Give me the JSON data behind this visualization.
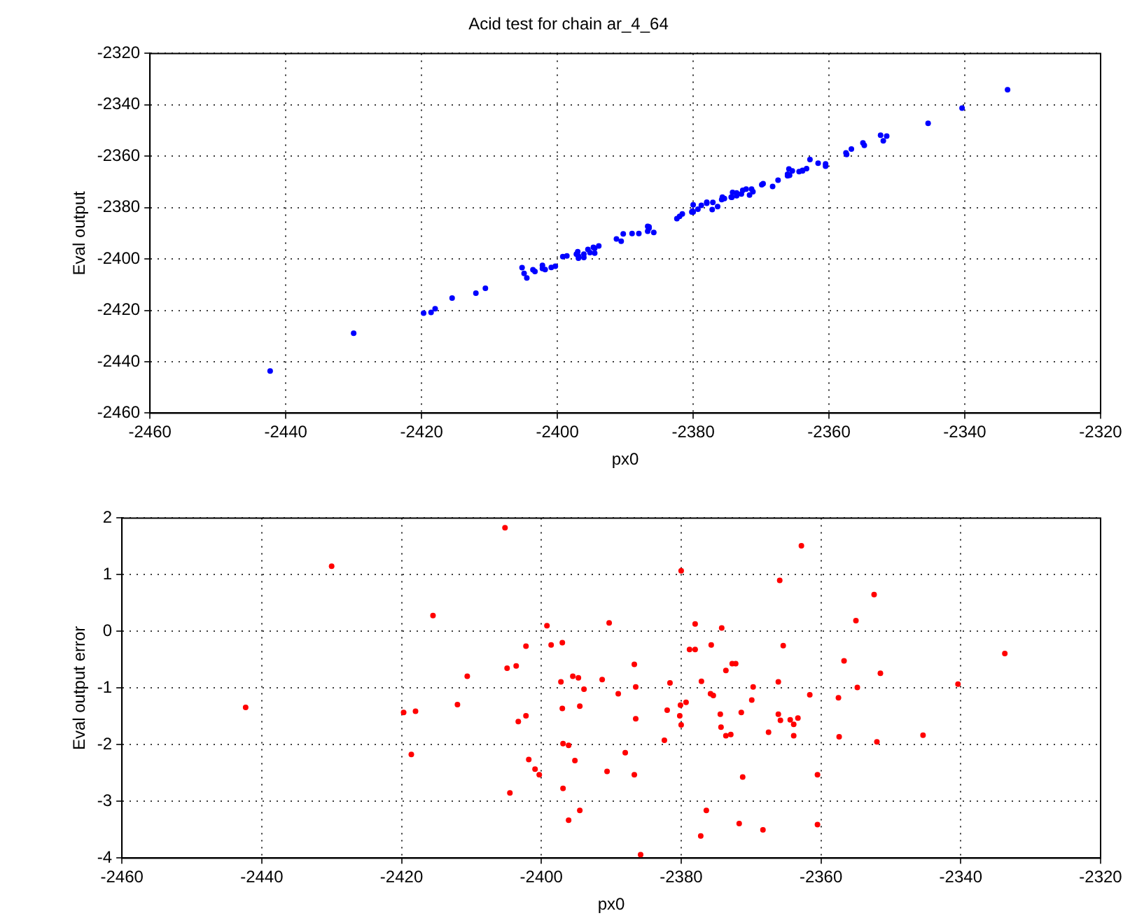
{
  "chart_data": [
    {
      "type": "scatter",
      "title": "Acid test for chain ar_4_64",
      "xlabel": "px0",
      "ylabel": "Eval output",
      "xlim": [
        -2460,
        -2320
      ],
      "xticks": [
        -2460,
        -2440,
        -2420,
        -2400,
        -2380,
        -2360,
        -2340,
        -2320
      ],
      "ylim": [
        -2460,
        -2320
      ],
      "yticks": [
        -2460,
        -2440,
        -2420,
        -2400,
        -2380,
        -2360,
        -2340,
        -2320
      ],
      "grid": true,
      "legend": false,
      "marker": "circle",
      "series": [
        {
          "color": "#0000ff",
          "x": [
            -2442.3,
            -2430.0,
            -2419.7,
            -2418.6,
            -2418.0,
            -2415.5,
            -2412.0,
            -2410.6,
            -2405.2,
            -2404.9,
            -2404.5,
            -2403.6,
            -2403.3,
            -2402.2,
            -2402.2,
            -2401.8,
            -2400.9,
            -2400.3,
            -2399.2,
            -2398.6,
            -2397.0,
            -2397.2,
            -2396.9,
            -2396.1,
            -2396.9,
            -2396.1,
            -2395.5,
            -2394.7,
            -2394.5,
            -2395.2,
            -2394.5,
            -2393.9,
            -2391.3,
            -2390.6,
            -2390.3,
            -2389.0,
            -2388.0,
            -2386.7,
            -2386.7,
            -2386.5,
            -2386.5,
            -2385.8,
            -2382.4,
            -2382.0,
            -2381.6,
            -2380.0,
            -2380.1,
            -2380.2,
            -2380.0,
            -2379.3,
            -2378.8,
            -2378.0,
            -2378.0,
            -2377.1,
            -2376.4,
            -2377.2,
            -2375.7,
            -2375.8,
            -2375.4,
            -2374.2,
            -2374.4,
            -2374.3,
            -2373.6,
            -2373.6,
            -2372.9,
            -2372.7,
            -2372.2,
            -2371.4,
            -2371.2,
            -2371.7,
            -2369.9,
            -2369.7,
            -2368.3,
            -2367.5,
            -2366.1,
            -2365.9,
            -2366.1,
            -2365.8,
            -2365.4,
            -2364.4,
            -2363.9,
            -2363.9,
            -2363.3,
            -2362.8,
            -2361.6,
            -2360.5,
            -2360.5,
            -2357.5,
            -2357.4,
            -2356.7,
            -2355.0,
            -2354.8,
            -2352.4,
            -2352.0,
            -2351.5,
            -2345.4,
            -2340.4,
            -2333.7
          ],
          "values": [
            -2443.6,
            -2428.9,
            -2421.1,
            -2420.8,
            -2419.4,
            -2415.2,
            -2413.3,
            -2411.4,
            -2403.4,
            -2405.6,
            -2407.4,
            -2404.2,
            -2404.9,
            -2403.7,
            -2402.5,
            -2404.1,
            -2403.3,
            -2402.8,
            -2399.1,
            -2398.8,
            -2397.2,
            -2398.1,
            -2398.9,
            -2398.1,
            -2399.7,
            -2399.4,
            -2396.3,
            -2395.5,
            -2395.8,
            -2397.5,
            -2397.7,
            -2394.9,
            -2392.2,
            -2393.1,
            -2390.2,
            -2390.1,
            -2390.1,
            -2389.2,
            -2387.3,
            -2387.5,
            -2388.0,
            -2389.7,
            -2384.3,
            -2383.4,
            -2382.5,
            -2378.9,
            -2381.4,
            -2381.7,
            -2381.7,
            -2380.6,
            -2379.1,
            -2378.3,
            -2377.9,
            -2378.0,
            -2379.6,
            -2380.8,
            -2375.9,
            -2376.9,
            -2376.5,
            -2374.1,
            -2375.9,
            -2376.0,
            -2374.3,
            -2375.4,
            -2374.7,
            -2373.3,
            -2372.8,
            -2372.8,
            -2373.8,
            -2375.1,
            -2371.1,
            -2370.7,
            -2371.8,
            -2369.3,
            -2367.0,
            -2365.0,
            -2367.6,
            -2367.4,
            -2365.7,
            -2366.0,
            -2365.5,
            -2365.7,
            -2364.8,
            -2361.3,
            -2362.7,
            -2363.0,
            -2363.9,
            -2358.7,
            -2359.3,
            -2357.2,
            -2354.8,
            -2355.8,
            -2351.8,
            -2354.0,
            -2352.2,
            -2347.2,
            -2341.3,
            -2334.1
          ]
        }
      ]
    },
    {
      "type": "scatter",
      "xlabel": "px0",
      "ylabel": "Eval output error",
      "xlim": [
        -2460,
        -2320
      ],
      "xticks": [
        -2460,
        -2440,
        -2420,
        -2400,
        -2380,
        -2360,
        -2340,
        -2320
      ],
      "ylim": [
        -4,
        2
      ],
      "yticks": [
        -4,
        -3,
        -2,
        -1,
        0,
        1,
        2
      ],
      "grid": true,
      "legend": false,
      "marker": "circle",
      "series": [
        {
          "color": "#ff0000",
          "x": [
            -2442.3,
            -2430.0,
            -2419.7,
            -2418.6,
            -2418.0,
            -2415.5,
            -2412.0,
            -2410.6,
            -2405.2,
            -2404.9,
            -2404.5,
            -2403.6,
            -2403.3,
            -2402.2,
            -2402.2,
            -2401.8,
            -2400.9,
            -2400.3,
            -2399.2,
            -2398.6,
            -2397.0,
            -2397.2,
            -2397.0,
            -2396.9,
            -2396.1,
            -2396.9,
            -2396.1,
            -2395.5,
            -2394.7,
            -2394.5,
            -2395.2,
            -2394.5,
            -2393.9,
            -2391.3,
            -2390.6,
            -2390.3,
            -2389.0,
            -2388.0,
            -2386.7,
            -2386.7,
            -2386.5,
            -2386.5,
            -2385.8,
            -2382.4,
            -2382.0,
            -2381.6,
            -2380.0,
            -2380.1,
            -2380.2,
            -2380.0,
            -2379.3,
            -2378.8,
            -2378.0,
            -2378.0,
            -2377.1,
            -2376.4,
            -2377.2,
            -2375.7,
            -2375.8,
            -2375.4,
            -2374.2,
            -2374.4,
            -2374.3,
            -2373.6,
            -2373.6,
            -2372.9,
            -2372.7,
            -2372.2,
            -2371.4,
            -2371.2,
            -2371.7,
            -2369.9,
            -2369.7,
            -2368.3,
            -2367.5,
            -2366.1,
            -2365.9,
            -2366.1,
            -2365.8,
            -2365.4,
            -2364.4,
            -2363.9,
            -2363.9,
            -2363.3,
            -2362.8,
            -2361.6,
            -2360.5,
            -2360.5,
            -2357.5,
            -2357.4,
            -2356.7,
            -2355.0,
            -2354.8,
            -2352.4,
            -2352.0,
            -2351.5,
            -2345.4,
            -2340.4,
            -2333.7
          ],
          "values": [
            -1.34,
            1.15,
            -1.43,
            -2.17,
            -1.41,
            0.28,
            -1.29,
            -0.79,
            1.83,
            -0.65,
            -2.85,
            -0.61,
            -1.59,
            -1.49,
            -0.26,
            -2.26,
            -2.43,
            -2.53,
            0.1,
            -0.24,
            -0.2,
            -0.89,
            -1.36,
            -1.98,
            -2.01,
            -2.77,
            -3.33,
            -0.79,
            -0.82,
            -1.32,
            -2.28,
            -3.16,
            -1.02,
            -0.85,
            -2.47,
            0.15,
            -1.1,
            -2.14,
            -2.53,
            -0.58,
            -0.98,
            -1.54,
            -3.94,
            -1.92,
            -1.39,
            -0.91,
            1.07,
            -1.3,
            -1.49,
            -1.65,
            -1.25,
            -0.32,
            -0.32,
            0.13,
            -0.88,
            -3.16,
            -3.61,
            -0.24,
            -1.1,
            -1.13,
            0.06,
            -1.46,
            -1.69,
            -0.69,
            -1.84,
            -1.82,
            -0.57,
            -0.57,
            -1.43,
            -2.57,
            -3.39,
            -1.21,
            -0.98,
            -3.5,
            -1.78,
            -0.89,
            0.9,
            -1.46,
            -1.57,
            -0.25,
            -1.56,
            -1.64,
            -1.84,
            -1.53,
            1.51,
            -1.12,
            -2.53,
            -3.41,
            -1.17,
            -1.86,
            -0.52,
            0.19,
            -0.99,
            0.65,
            -1.95,
            -0.74,
            -1.83,
            -0.93,
            -0.39
          ]
        }
      ]
    }
  ]
}
